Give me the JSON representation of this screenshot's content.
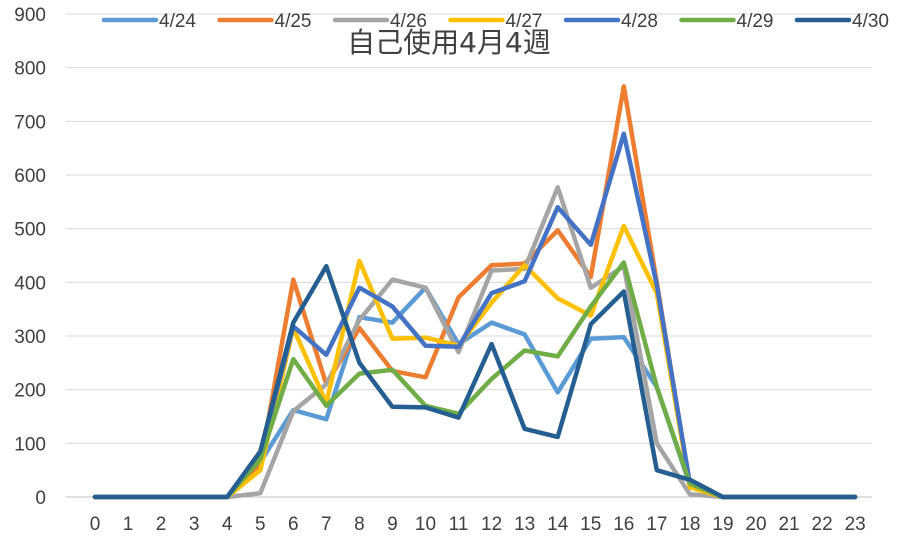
{
  "chart_data": {
    "type": "line",
    "title": "自己使用4月4週",
    "xlabel": "",
    "ylabel": "",
    "x": [
      0,
      1,
      2,
      3,
      4,
      5,
      6,
      7,
      8,
      9,
      10,
      11,
      12,
      13,
      14,
      15,
      16,
      17,
      18,
      19,
      20,
      21,
      22,
      23
    ],
    "ylim": [
      0,
      900
    ],
    "yticks": [
      0,
      100,
      200,
      300,
      400,
      500,
      600,
      700,
      800,
      900
    ],
    "grid": true,
    "legend_position": "top",
    "series": [
      {
        "name": "4/24",
        "color": "#5b9bd5",
        "values": [
          0,
          0,
          0,
          0,
          0,
          65,
          162,
          145,
          335,
          325,
          390,
          285,
          325,
          303,
          195,
          295,
          298,
          205,
          22,
          0,
          0,
          0,
          0,
          0
        ]
      },
      {
        "name": "4/25",
        "color": "#ed7d31",
        "values": [
          0,
          0,
          0,
          0,
          0,
          60,
          405,
          210,
          315,
          235,
          223,
          372,
          432,
          435,
          497,
          410,
          765,
          400,
          20,
          0,
          0,
          0,
          0,
          0
        ]
      },
      {
        "name": "4/26",
        "color": "#a5a5a5",
        "values": [
          0,
          0,
          0,
          0,
          0,
          7,
          160,
          210,
          330,
          405,
          390,
          270,
          422,
          425,
          577,
          390,
          430,
          100,
          5,
          0,
          0,
          0,
          0,
          0
        ]
      },
      {
        "name": "4/27",
        "color": "#ffc000",
        "values": [
          0,
          0,
          0,
          0,
          0,
          50,
          315,
          175,
          440,
          295,
          297,
          282,
          362,
          432,
          370,
          338,
          505,
          380,
          18,
          0,
          0,
          0,
          0,
          0
        ]
      },
      {
        "name": "4/28",
        "color": "#4472c4",
        "values": [
          0,
          0,
          0,
          0,
          0,
          80,
          318,
          265,
          390,
          355,
          282,
          280,
          380,
          402,
          540,
          470,
          677,
          395,
          25,
          0,
          0,
          0,
          0,
          0
        ]
      },
      {
        "name": "4/29",
        "color": "#70ad47",
        "values": [
          0,
          0,
          0,
          0,
          0,
          70,
          257,
          170,
          230,
          237,
          170,
          155,
          220,
          273,
          262,
          355,
          437,
          205,
          25,
          0,
          0,
          0,
          0,
          0
        ]
      },
      {
        "name": "4/30",
        "color": "#255e91",
        "values": [
          0,
          0,
          0,
          0,
          0,
          85,
          325,
          430,
          250,
          168,
          167,
          148,
          285,
          127,
          112,
          322,
          383,
          50,
          32,
          0,
          0,
          0,
          0,
          0
        ]
      }
    ]
  }
}
